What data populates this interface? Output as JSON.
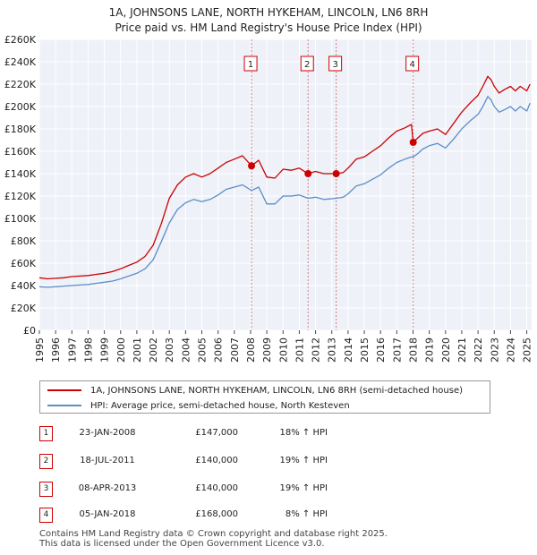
{
  "title_line1": "1A, JOHNSONS LANE, NORTH HYKEHAM, LINCOLN, LN6 8RH",
  "title_line2": "Price paid vs. HM Land Registry's House Price Index (HPI)",
  "chart_data": {
    "type": "line",
    "title": "1A, JOHNSONS LANE, NORTH HYKEHAM, LINCOLN, LN6 8RH — Price paid vs. HM Land Registry's House Price Index (HPI)",
    "xlabel": "",
    "ylabel": "",
    "xlim": [
      1995,
      2025.3
    ],
    "ylim": [
      0,
      260000
    ],
    "grid": true,
    "y_ticks": [
      0,
      20000,
      40000,
      60000,
      80000,
      100000,
      120000,
      140000,
      160000,
      180000,
      200000,
      220000,
      240000,
      260000
    ],
    "y_tick_labels": [
      "£0",
      "£20K",
      "£40K",
      "£60K",
      "£80K",
      "£100K",
      "£120K",
      "£140K",
      "£160K",
      "£180K",
      "£200K",
      "£220K",
      "£240K",
      "£260K"
    ],
    "x_ticks": [
      1995,
      1996,
      1997,
      1998,
      1999,
      2000,
      2001,
      2002,
      2003,
      2004,
      2005,
      2006,
      2007,
      2008,
      2009,
      2010,
      2011,
      2012,
      2013,
      2014,
      2015,
      2016,
      2017,
      2018,
      2019,
      2020,
      2021,
      2022,
      2023,
      2024,
      2025
    ],
    "x_tick_labels": [
      "1995",
      "1996",
      "1997",
      "1998",
      "1999",
      "2000",
      "2001",
      "2002",
      "2003",
      "2004",
      "2005",
      "2006",
      "2007",
      "2008",
      "2009",
      "2010",
      "2011",
      "2012",
      "2013",
      "2014",
      "2015",
      "2016",
      "2017",
      "2018",
      "2019",
      "2020",
      "2021",
      "2022",
      "2023",
      "2024",
      "2025"
    ],
    "series": [
      {
        "name": "1A, JOHNSONS LANE, NORTH HYKEHAM, LINCOLN, LN6 8RH (semi-detached house)",
        "color": "#cc0000",
        "x": [
          1995,
          1995.5,
          1996,
          1996.5,
          1997,
          1997.5,
          1998,
          1998.5,
          1999,
          1999.5,
          2000,
          2000.5,
          2001,
          2001.5,
          2002,
          2002.5,
          2003,
          2003.5,
          2004,
          2004.5,
          2005,
          2005.5,
          2006,
          2006.5,
          2007,
          2007.5,
          2008.06,
          2008.5,
          2009,
          2009.5,
          2010,
          2010.5,
          2011,
          2011.54,
          2012,
          2012.5,
          2013.27,
          2013.7,
          2014,
          2014.5,
          2015,
          2015.5,
          2016,
          2016.5,
          2017,
          2017.5,
          2017.9,
          2018.01,
          2018.3,
          2018.6,
          2019,
          2019.5,
          2020,
          2020.5,
          2021,
          2021.5,
          2022,
          2022.3,
          2022.6,
          2022.8,
          2023,
          2023.3,
          2023.6,
          2024,
          2024.3,
          2024.6,
          2025,
          2025.2
        ],
        "values": [
          47000,
          46000,
          46500,
          47000,
          48000,
          48500,
          49000,
          50000,
          51000,
          52500,
          55000,
          58000,
          61000,
          66000,
          76000,
          95000,
          118000,
          130000,
          137000,
          140000,
          137000,
          140000,
          145000,
          150000,
          153000,
          156000,
          147000,
          152000,
          137000,
          136000,
          144000,
          143000,
          145000,
          140000,
          142000,
          140000,
          140000,
          141000,
          145000,
          153000,
          155000,
          160000,
          165000,
          172000,
          178000,
          181000,
          184000,
          168000,
          172000,
          176000,
          178000,
          180000,
          175000,
          185000,
          195000,
          203000,
          210000,
          218000,
          227000,
          224000,
          218000,
          212000,
          215000,
          218000,
          214000,
          218000,
          214000,
          220000
        ]
      },
      {
        "name": "HPI: Average price, semi-detached house, North Kesteven",
        "color": "#5b8ec9",
        "x": [
          1995,
          1995.5,
          1996,
          1996.5,
          1997,
          1997.5,
          1998,
          1998.5,
          1999,
          1999.5,
          2000,
          2000.5,
          2001,
          2001.5,
          2002,
          2002.5,
          2003,
          2003.5,
          2004,
          2004.5,
          2005,
          2005.5,
          2006,
          2006.5,
          2007,
          2007.5,
          2008.06,
          2008.5,
          2009,
          2009.5,
          2010,
          2010.5,
          2011,
          2011.54,
          2012,
          2012.5,
          2013.27,
          2013.7,
          2014,
          2014.5,
          2015,
          2015.5,
          2016,
          2016.5,
          2017,
          2017.5,
          2017.9,
          2018.01,
          2018.3,
          2018.6,
          2019,
          2019.5,
          2020,
          2020.5,
          2021,
          2021.5,
          2022,
          2022.3,
          2022.6,
          2022.8,
          2023,
          2023.3,
          2023.6,
          2024,
          2024.3,
          2024.6,
          2025,
          2025.2
        ],
        "values": [
          39000,
          38500,
          39000,
          39500,
          40000,
          40500,
          41000,
          42000,
          43000,
          44000,
          46000,
          48500,
          51000,
          55000,
          63000,
          79000,
          96000,
          108000,
          114000,
          117000,
          115000,
          117000,
          121000,
          126000,
          128000,
          130000,
          125000,
          128000,
          113000,
          113000,
          120000,
          120000,
          121000,
          118000,
          119000,
          117000,
          118000,
          119000,
          122000,
          129000,
          131000,
          135000,
          139000,
          145000,
          150000,
          153000,
          155000,
          155000,
          158000,
          162000,
          165000,
          167000,
          163000,
          171000,
          180000,
          187000,
          193000,
          200000,
          209000,
          206000,
          200000,
          195000,
          197000,
          200000,
          196000,
          200000,
          196000,
          203000
        ]
      }
    ],
    "markers": [
      {
        "id": "1",
        "x": 2008.06,
        "value": 147000
      },
      {
        "id": "2",
        "x": 2011.54,
        "value": 140000
      },
      {
        "id": "3",
        "x": 2013.27,
        "value": 140000
      },
      {
        "id": "4",
        "x": 2018.01,
        "value": 168000
      }
    ]
  },
  "legend": {
    "property_label": "1A, JOHNSONS LANE, NORTH HYKEHAM, LINCOLN, LN6 8RH (semi-detached house)",
    "hpi_label": "HPI: Average price, semi-detached house, North Kesteven"
  },
  "transactions": [
    {
      "id": "1",
      "date": "23-JAN-2008",
      "price": "£147,000",
      "hpi": "18% ↑ HPI"
    },
    {
      "id": "2",
      "date": "18-JUL-2011",
      "price": "£140,000",
      "hpi": "19% ↑ HPI"
    },
    {
      "id": "3",
      "date": "08-APR-2013",
      "price": "£140,000",
      "hpi": "19% ↑ HPI"
    },
    {
      "id": "4",
      "date": "05-JAN-2018",
      "price": "£168,000",
      "hpi": "8% ↑ HPI"
    }
  ],
  "footer": {
    "line1": "Contains HM Land Registry data © Crown copyright and database right 2025.",
    "line2": "This data is licensed under the Open Government Licence v3.0."
  }
}
